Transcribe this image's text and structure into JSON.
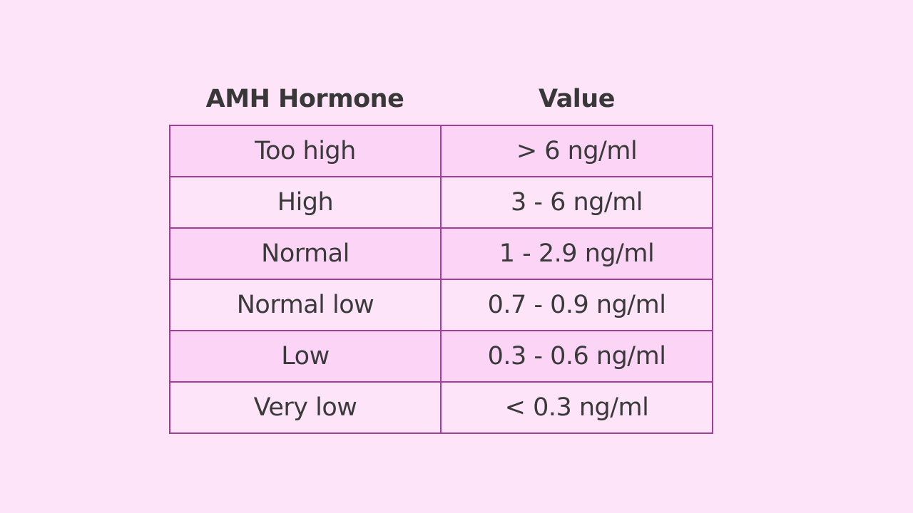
{
  "table": {
    "headers": {
      "hormone": "AMH Hormone",
      "value": "Value"
    },
    "rows": [
      {
        "label": "Too high",
        "value": "> 6 ng/ml"
      },
      {
        "label": "High",
        "value": "3 - 6 ng/ml"
      },
      {
        "label": "Normal",
        "value": "1 - 2.9 ng/ml"
      },
      {
        "label": "Normal low",
        "value": "0.7 - 0.9 ng/ml"
      },
      {
        "label": "Low",
        "value": "0.3 - 0.6 ng/ml"
      },
      {
        "label": "Very low",
        "value": "< 0.3 ng/ml"
      }
    ]
  },
  "colors": {
    "background": "#fde4f8",
    "row_shaded": "#fcd5f6",
    "border": "#a63c9a",
    "text": "#3a3a3a"
  }
}
